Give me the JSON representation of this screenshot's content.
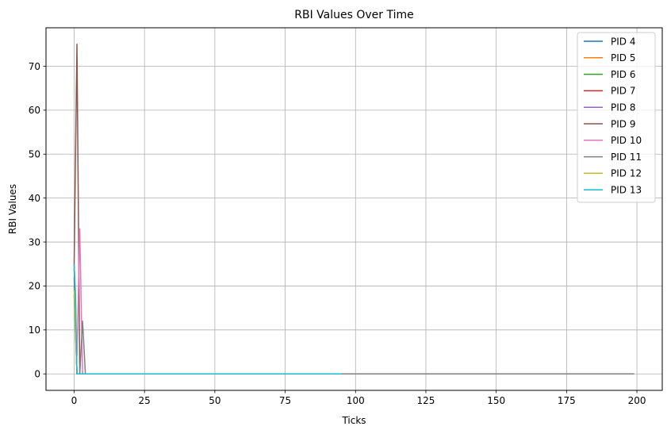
{
  "chart_data": {
    "type": "line",
    "title": "RBI Values Over Time",
    "xlabel": "Ticks",
    "ylabel": "RBI Values",
    "xlim": [
      -10,
      209
    ],
    "ylim": [
      -3.75,
      78.75
    ],
    "xticks": [
      0,
      25,
      50,
      75,
      100,
      125,
      150,
      175,
      200
    ],
    "yticks": [
      0,
      10,
      20,
      30,
      40,
      50,
      60,
      70
    ],
    "grid": true,
    "legend_position": "top-right",
    "series": [
      {
        "name": "PID 4",
        "color": "#1f77b4",
        "points": [
          [
            0,
            18
          ],
          [
            1,
            0
          ],
          [
            95,
            0
          ]
        ]
      },
      {
        "name": "PID 5",
        "color": "#ff7f0e",
        "points": [
          [
            0,
            20
          ],
          [
            1,
            0
          ],
          [
            95,
            0
          ]
        ]
      },
      {
        "name": "PID 6",
        "color": "#2ca02c",
        "points": [
          [
            0,
            22
          ],
          [
            1,
            0
          ],
          [
            95,
            0
          ]
        ]
      },
      {
        "name": "PID 7",
        "color": "#d62728",
        "points": [
          [
            0,
            25
          ],
          [
            1,
            0
          ],
          [
            95,
            0
          ]
        ]
      },
      {
        "name": "PID 8",
        "color": "#9467bd",
        "points": [
          [
            0,
            24
          ],
          [
            1,
            0
          ],
          [
            2,
            0
          ],
          [
            199,
            0
          ]
        ]
      },
      {
        "name": "PID 9",
        "color": "#8c564b",
        "points": [
          [
            0,
            25
          ],
          [
            1,
            75
          ],
          [
            2,
            0
          ],
          [
            199,
            0
          ]
        ]
      },
      {
        "name": "PID 10",
        "color": "#e377c2",
        "points": [
          [
            1,
            4
          ],
          [
            2,
            33
          ],
          [
            3,
            0
          ],
          [
            199,
            0
          ]
        ]
      },
      {
        "name": "PID 11",
        "color": "#7f7f7f",
        "points": [
          [
            2,
            0
          ],
          [
            3,
            12
          ],
          [
            4,
            0
          ],
          [
            199,
            0
          ]
        ]
      },
      {
        "name": "PID 12",
        "color": "#bcbd22",
        "points": [
          [
            0,
            19
          ],
          [
            1,
            0
          ],
          [
            95,
            0
          ]
        ]
      },
      {
        "name": "PID 13",
        "color": "#17becf",
        "points": [
          [
            0,
            25
          ],
          [
            0.5,
            18
          ],
          [
            1,
            0
          ],
          [
            95,
            0
          ]
        ]
      }
    ]
  }
}
